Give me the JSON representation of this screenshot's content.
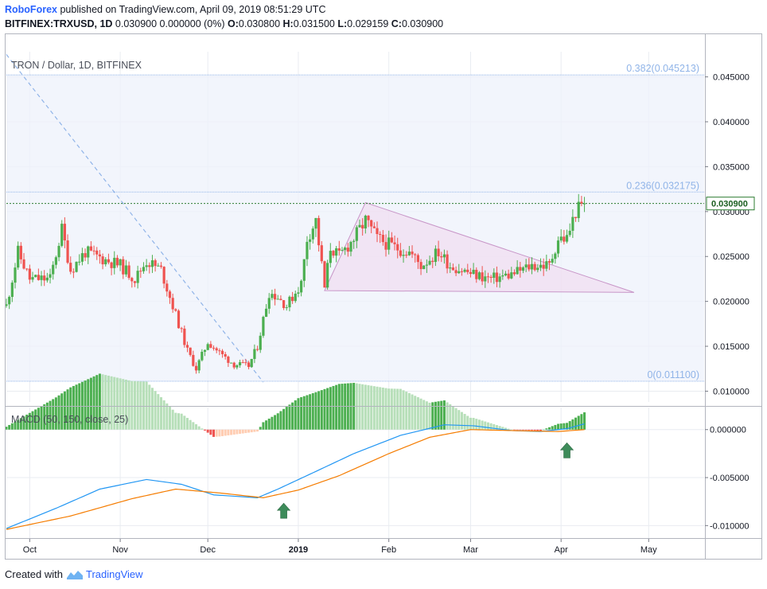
{
  "header": {
    "brand": "RoboForex",
    "published": " published on TradingView.com, April 09, 2019 08:51:29 UTC",
    "symbol": "BITFINEX:TRXUSD, 1D",
    "values": " 0.030900 0.000000 (0%) ",
    "ohlc": [
      {
        "label": "O:",
        "value": "0.030800"
      },
      {
        "label": "H:",
        "value": "0.031500"
      },
      {
        "label": "L:",
        "value": "0.029159"
      },
      {
        "label": "C:",
        "value": "0.030900"
      }
    ]
  },
  "footer": {
    "created_with": "Created with",
    "brand": "TradingView"
  },
  "colors": {
    "up": "#4caf50",
    "down": "#ef5350",
    "macd_line": "#2196f3",
    "signal_line": "#f57c00",
    "fib": "#90b4e8",
    "triangle": "#c896c8",
    "arrow": "#3d8b5a"
  },
  "chart_data": [
    {
      "type": "candlestick",
      "title": "TRON / Dollar, 1D, BITFINEX",
      "x_axis": {
        "labels": [
          "Oct",
          "Nov",
          "Dec",
          "2019",
          "Feb",
          "Mar",
          "Apr",
          "May"
        ],
        "start": "2018-09-23",
        "end": "2019-05-20"
      },
      "y_axis": {
        "ticks": [
          "0.045000",
          "0.040000",
          "0.035000",
          "0.030000",
          "0.025000",
          "0.020000",
          "0.015000",
          "0.010000"
        ],
        "range": [
          0.0088,
          0.0478
        ]
      },
      "last_price": "0.030900",
      "fibonacci": [
        {
          "label": "0.382(0.045213)",
          "value": 0.045213
        },
        {
          "label": "0.236(0.032175)",
          "value": 0.032175
        },
        {
          "label": "0(0.011100)",
          "value": 0.0111
        }
      ],
      "ohlc_anchors": [
        {
          "date": "2018-09-23",
          "close": 0.0195
        },
        {
          "date": "2018-09-27",
          "close": 0.0255
        },
        {
          "date": "2018-10-01",
          "close": 0.0225
        },
        {
          "date": "2018-10-08",
          "close": 0.0225
        },
        {
          "date": "2018-10-12",
          "close": 0.028
        },
        {
          "date": "2018-10-15",
          "close": 0.0235
        },
        {
          "date": "2018-10-20",
          "close": 0.0255
        },
        {
          "date": "2018-11-01",
          "close": 0.024
        },
        {
          "date": "2018-11-06",
          "close": 0.0225
        },
        {
          "date": "2018-11-10",
          "close": 0.0245
        },
        {
          "date": "2018-11-15",
          "close": 0.0235
        },
        {
          "date": "2018-11-19",
          "close": 0.0195
        },
        {
          "date": "2018-11-24",
          "close": 0.0145
        },
        {
          "date": "2018-11-27",
          "close": 0.0125
        },
        {
          "date": "2018-12-01",
          "close": 0.0155
        },
        {
          "date": "2018-12-06",
          "close": 0.014
        },
        {
          "date": "2018-12-10",
          "close": 0.013
        },
        {
          "date": "2018-12-15",
          "close": 0.0128
        },
        {
          "date": "2018-12-18",
          "close": 0.015
        },
        {
          "date": "2018-12-22",
          "close": 0.021
        },
        {
          "date": "2018-12-25",
          "close": 0.0205
        },
        {
          "date": "2018-12-28",
          "close": 0.0195
        },
        {
          "date": "2019-01-02",
          "close": 0.022
        },
        {
          "date": "2019-01-04",
          "close": 0.027
        },
        {
          "date": "2019-01-07",
          "close": 0.029
        },
        {
          "date": "2019-01-10",
          "close": 0.0215
        },
        {
          "date": "2019-01-12",
          "close": 0.026
        },
        {
          "date": "2019-01-15",
          "close": 0.025
        },
        {
          "date": "2019-01-20",
          "close": 0.027
        },
        {
          "date": "2019-01-24",
          "close": 0.029
        },
        {
          "date": "2019-01-28",
          "close": 0.027
        },
        {
          "date": "2019-02-03",
          "close": 0.026
        },
        {
          "date": "2019-02-08",
          "close": 0.0255
        },
        {
          "date": "2019-02-12",
          "close": 0.024
        },
        {
          "date": "2019-02-18",
          "close": 0.0255
        },
        {
          "date": "2019-02-22",
          "close": 0.024
        },
        {
          "date": "2019-02-26",
          "close": 0.0235
        },
        {
          "date": "2019-03-02",
          "close": 0.023
        },
        {
          "date": "2019-03-08",
          "close": 0.0225
        },
        {
          "date": "2019-03-15",
          "close": 0.023
        },
        {
          "date": "2019-03-22",
          "close": 0.024
        },
        {
          "date": "2019-03-28",
          "close": 0.024
        },
        {
          "date": "2019-03-31",
          "close": 0.027
        },
        {
          "date": "2019-04-03",
          "close": 0.027
        },
        {
          "date": "2019-04-06",
          "close": 0.03
        },
        {
          "date": "2019-04-09",
          "close": 0.0309
        }
      ],
      "triangle": [
        {
          "date": "2019-01-10",
          "value": 0.0212
        },
        {
          "date": "2019-01-24",
          "value": 0.031
        },
        {
          "date": "2019-04-26",
          "value": 0.021
        }
      ],
      "diagonal_trendline": [
        {
          "date": "2018-09-23",
          "value": 0.0475
        },
        {
          "date": "2018-12-20",
          "value": 0.011
        }
      ]
    },
    {
      "type": "histogram+line",
      "title": "MACD (50, 150, close, 25)",
      "y_axis": {
        "ticks": [
          "0.000000",
          "-0.005000",
          "-0.010000"
        ],
        "range": [
          -0.0113,
          0.0023
        ]
      },
      "series": [
        {
          "name": "MACD",
          "points": [
            [
              "2018-09-23",
              -0.0103
            ],
            [
              "2018-10-10",
              -0.0082
            ],
            [
              "2018-10-25",
              -0.0062
            ],
            [
              "2018-11-10",
              -0.0052
            ],
            [
              "2018-11-22",
              -0.0057
            ],
            [
              "2018-12-03",
              -0.0068
            ],
            [
              "2018-12-18",
              -0.0071
            ],
            [
              "2018-12-25",
              -0.0062
            ],
            [
              "2019-01-06",
              -0.0045
            ],
            [
              "2019-01-20",
              -0.0025
            ],
            [
              "2019-02-05",
              -0.0006
            ],
            [
              "2019-02-20",
              0.0005
            ],
            [
              "2019-03-02",
              0.0004
            ],
            [
              "2019-03-15",
              -0.0001
            ],
            [
              "2019-03-25",
              -0.0002
            ],
            [
              "2019-04-03",
              0.0001
            ],
            [
              "2019-04-09",
              0.0006
            ]
          ]
        },
        {
          "name": "Signal",
          "points": [
            [
              "2018-09-23",
              -0.0104
            ],
            [
              "2018-10-15",
              -0.009
            ],
            [
              "2018-11-05",
              -0.0072
            ],
            [
              "2018-11-20",
              -0.0062
            ],
            [
              "2018-12-05",
              -0.0066
            ],
            [
              "2018-12-20",
              -0.0071
            ],
            [
              "2019-01-01",
              -0.0063
            ],
            [
              "2019-01-15",
              -0.0048
            ],
            [
              "2019-02-01",
              -0.0025
            ],
            [
              "2019-02-15",
              -0.0008
            ],
            [
              "2019-03-01",
              0.0
            ],
            [
              "2019-03-15",
              -0.0001
            ],
            [
              "2019-03-31",
              -0.0002
            ],
            [
              "2019-04-09",
              0.0
            ]
          ]
        }
      ],
      "annotations": [
        {
          "type": "arrow-up",
          "date": "2018-12-27",
          "value": -0.0085
        },
        {
          "type": "arrow-up",
          "date": "2019-04-03",
          "value": -0.0022
        }
      ]
    }
  ]
}
